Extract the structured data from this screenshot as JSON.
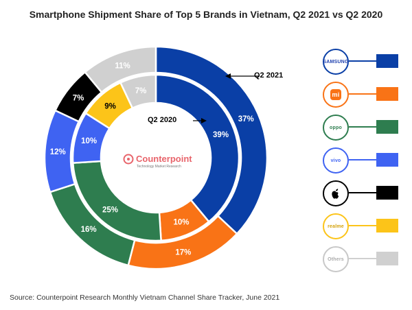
{
  "title": "Smartphone Shipment Share of Top 5 Brands in Vietnam, Q2 2021 vs Q2 2020",
  "source": "Source: Counterpoint Research Monthly Vietnam Channel Share Tracker, June 2021",
  "center_logo": {
    "name": "Counterpoint",
    "tagline": "Technology Market Research",
    "color": "#e8646b"
  },
  "chart_data": {
    "type": "pie",
    "subtype": "nested-donut",
    "title": "Smartphone Shipment Share of Top 5 Brands in Vietnam, Q2 2021 vs Q2 2020",
    "categories": [
      "Samsung",
      "Xiaomi",
      "OPPO",
      "vivo",
      "Apple",
      "realme",
      "Others"
    ],
    "colors": [
      "#0a3fa6",
      "#f97316",
      "#2e7d4f",
      "#3f63f2",
      "#000000",
      "#fcc419",
      "#d0d0d0"
    ],
    "label_colors": [
      "#ffffff",
      "#ffffff",
      "#ffffff",
      "#ffffff",
      "#ffffff",
      "#000000",
      "#ffffff"
    ],
    "series": [
      {
        "name": "Q2 2021",
        "ring": "outer",
        "values": [
          37,
          17,
          16,
          12,
          7,
          0,
          11
        ],
        "labels": [
          "37%",
          "17%",
          "16%",
          "12%",
          "7%",
          "",
          "11%"
        ]
      },
      {
        "name": "Q2 2020",
        "ring": "inner",
        "values": [
          39,
          10,
          25,
          10,
          0,
          9,
          7
        ],
        "labels": [
          "39%",
          "10%",
          "25%",
          "10%",
          "",
          "9%",
          "7%"
        ]
      }
    ],
    "legend_placement": "right"
  },
  "legend": [
    {
      "logo_text": "SAMSUNG",
      "color": "#0a3fa6",
      "logo_color": "#1e40af"
    },
    {
      "logo_text": "mi",
      "color": "#f97316",
      "logo_color": "#ffffff",
      "logo_fill": "#f97316"
    },
    {
      "logo_text": "oppo",
      "color": "#2e7d4f",
      "logo_color": "#2e7d4f"
    },
    {
      "logo_text": "vivo",
      "color": "#3f63f2",
      "logo_color": "#3f63f2"
    },
    {
      "logo_text": "",
      "color": "#000000",
      "logo_color": "#000000",
      "icon": "apple-icon"
    },
    {
      "logo_text": "realme",
      "color": "#fcc419",
      "logo_color": "#d4a20b"
    },
    {
      "logo_text": "Others",
      "color": "#d0d0d0",
      "logo_color": "#aaaaaa"
    }
  ]
}
